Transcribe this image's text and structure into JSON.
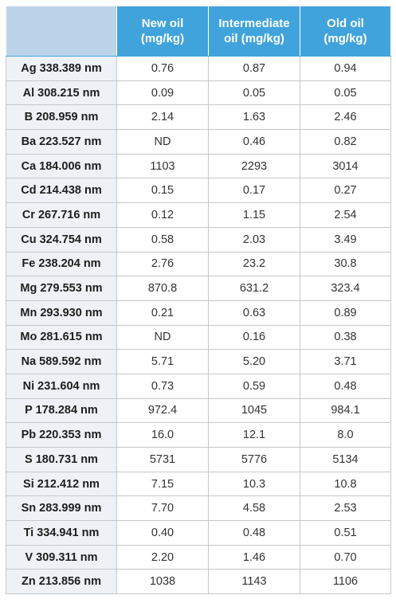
{
  "table": {
    "headers": [
      "",
      [
        "New oil",
        "(mg/kg)"
      ],
      [
        "Intermediate",
        "oil (mg/kg)"
      ],
      [
        "Old oil",
        "(mg/kg)"
      ]
    ],
    "rows": [
      [
        "Ag 338.389 nm",
        "0.76",
        "0.87",
        "0.94"
      ],
      [
        "Al 308.215 nm",
        "0.09",
        "0.05",
        "0.05"
      ],
      [
        "B 208.959 nm",
        "2.14",
        "1.63",
        "2.46"
      ],
      [
        "Ba 223.527 nm",
        "ND",
        "0.46",
        "0.82"
      ],
      [
        "Ca 184.006 nm",
        "1103",
        "2293",
        "3014"
      ],
      [
        "Cd 214.438 nm",
        "0.15",
        "0.17",
        "0.27"
      ],
      [
        "Cr 267.716 nm",
        "0.12",
        "1.15",
        "2.54"
      ],
      [
        "Cu 324.754 nm",
        "0.58",
        "2.03",
        "3.49"
      ],
      [
        "Fe 238.204 nm",
        "2.76",
        "23.2",
        "30.8"
      ],
      [
        "Mg 279.553 nm",
        "870.8",
        "631.2",
        "323.4"
      ],
      [
        "Mn 293.930 nm",
        "0.21",
        "0.63",
        "0.89"
      ],
      [
        "Mo 281.615 nm",
        "ND",
        "0.16",
        "0.38"
      ],
      [
        "Na 589.592 nm",
        "5.71",
        "5.20",
        "3.71"
      ],
      [
        "Ni 231.604 nm",
        "0.73",
        "0.59",
        "0.48"
      ],
      [
        "P 178.284 nm",
        "972.4",
        "1045",
        "984.1"
      ],
      [
        "Pb 220.353 nm",
        "16.0",
        "12.1",
        "8.0"
      ],
      [
        "S 180.731 nm",
        "5731",
        "5776",
        "5134"
      ],
      [
        "Si 212.412 nm",
        "7.15",
        "10.3",
        "10.8"
      ],
      [
        "Sn 283.999 nm",
        "7.70",
        "4.58",
        "2.53"
      ],
      [
        "Ti 334.941 nm",
        "0.40",
        "0.48",
        "0.51"
      ],
      [
        "V 309.311 nm",
        "2.20",
        "1.46",
        "0.70"
      ],
      [
        "Zn 213.856 nm",
        "1038",
        "1143",
        "1106"
      ]
    ]
  },
  "colors": {
    "header_bg": "#41a3dc",
    "corner_bg": "#bcd4ea",
    "first_column_bg": "#eef2f7",
    "border": "#c7c7c7"
  }
}
